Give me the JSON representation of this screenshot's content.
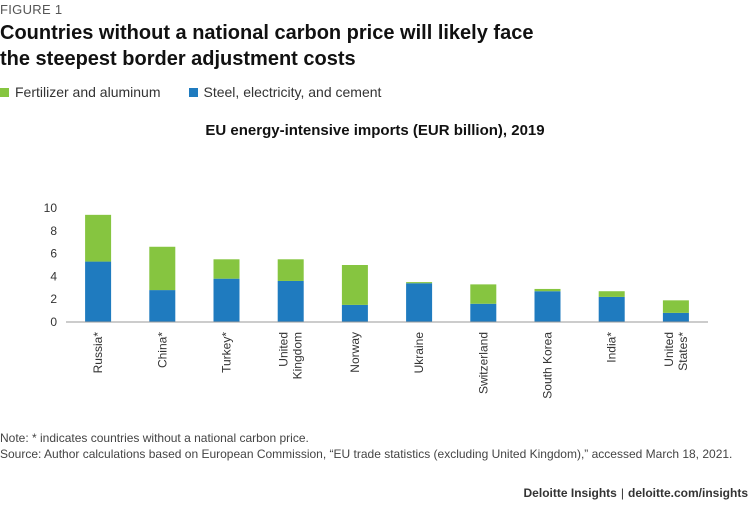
{
  "figure_label": "FIGURE 1",
  "headline_line1": "Countries without a national carbon price will likely face",
  "headline_line2": "the steepest border adjustment costs",
  "note": "Note: * indicates countries without a national carbon price.",
  "source": "Source: Author calculations based on European Commission, “EU trade statistics (excluding United Kingdom),” accessed March 18, 2021.",
  "credit": {
    "brand": "Deloitte Insights",
    "separator": "|",
    "url": "deloitte.com/insights"
  },
  "chart_data": {
    "type": "bar",
    "stacked": true,
    "title": "EU energy-intensive imports (EUR billion), 2019",
    "categories": [
      [
        "Russia*"
      ],
      [
        "China*"
      ],
      [
        "Turkey*"
      ],
      [
        "United",
        "Kingdom"
      ],
      [
        "Norway"
      ],
      [
        "Ukraine"
      ],
      [
        "Switzerland"
      ],
      [
        "South Korea"
      ],
      [
        "India*"
      ],
      [
        "United",
        "States*"
      ]
    ],
    "series": [
      {
        "name": "Steel, electricity, and cement",
        "color": "#1f7bbf",
        "values": [
          5.3,
          2.8,
          3.8,
          3.6,
          1.5,
          3.4,
          1.6,
          2.7,
          2.2,
          0.8
        ]
      },
      {
        "name": "Fertilizer and aluminum",
        "color": "#86c540",
        "values": [
          4.1,
          3.8,
          1.7,
          1.9,
          3.5,
          0.1,
          1.7,
          0.2,
          0.5,
          1.1
        ]
      }
    ],
    "legend_order": [
      "Fertilizer and aluminum",
      "Steel, electricity, and cement"
    ],
    "yticks": [
      0,
      2,
      4,
      6,
      8,
      10
    ],
    "ylim": [
      0,
      10
    ],
    "xlabel": "",
    "ylabel": "",
    "legend_position": "top-left"
  }
}
